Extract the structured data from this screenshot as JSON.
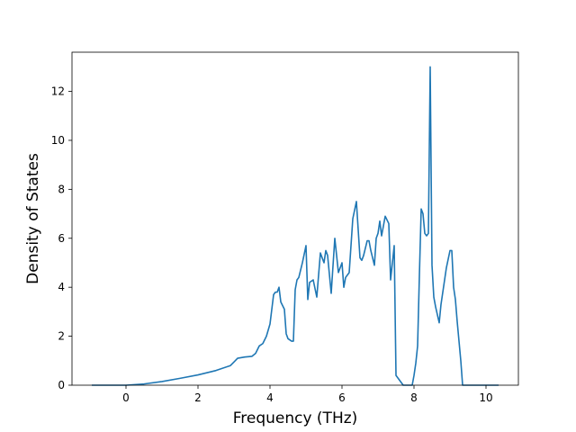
{
  "chart_data": {
    "type": "line",
    "title": "",
    "xlabel": "Frequency (THz)",
    "ylabel": "Density of States",
    "xlim": [
      -1.5,
      10.9
    ],
    "ylim": [
      0,
      13.6
    ],
    "grid": false,
    "line_color": "#1f77b4",
    "x_ticks": [
      0,
      2,
      4,
      6,
      8,
      10
    ],
    "y_ticks": [
      0,
      2,
      4,
      6,
      8,
      10,
      12
    ],
    "series": [
      {
        "x": [
          -0.95,
          -0.5,
          0.0,
          0.5,
          1.0,
          1.5,
          2.0,
          2.5,
          2.9,
          3.0,
          3.1,
          3.3,
          3.5,
          3.6,
          3.7,
          3.8,
          3.9,
          4.0,
          4.1,
          4.15,
          4.2,
          4.25,
          4.3,
          4.4,
          4.45,
          4.5,
          4.6,
          4.65,
          4.7,
          4.75,
          4.8,
          4.9,
          5.0,
          5.05,
          5.1,
          5.2,
          5.3,
          5.4,
          5.5,
          5.55,
          5.6,
          5.7,
          5.8,
          5.9,
          6.0,
          6.05,
          6.1,
          6.2,
          6.3,
          6.4,
          6.5,
          6.55,
          6.6,
          6.7,
          6.75,
          6.8,
          6.9,
          6.95,
          7.0,
          7.05,
          7.1,
          7.2,
          7.3,
          7.35,
          7.4,
          7.45,
          7.5,
          7.7,
          7.9,
          7.95,
          8.0,
          8.05,
          8.1,
          8.15,
          8.2,
          8.25,
          8.3,
          8.35,
          8.4,
          8.45,
          8.5,
          8.55,
          8.6,
          8.7,
          8.75,
          8.8,
          8.9,
          9.0,
          9.05,
          9.1,
          9.15,
          9.2,
          9.3,
          9.35,
          9.4,
          9.5,
          9.8,
          10.35
        ],
        "y": [
          0,
          0,
          0,
          0.05,
          0.15,
          0.28,
          0.42,
          0.6,
          0.8,
          0.95,
          1.1,
          1.15,
          1.18,
          1.3,
          1.6,
          1.7,
          2.0,
          2.5,
          3.7,
          3.8,
          3.8,
          4.0,
          3.4,
          3.1,
          2.1,
          1.9,
          1.8,
          1.8,
          3.9,
          4.3,
          4.4,
          5.0,
          5.7,
          3.5,
          4.2,
          4.3,
          3.6,
          5.4,
          5.0,
          5.5,
          5.3,
          3.75,
          6.0,
          4.6,
          5.0,
          4.0,
          4.4,
          4.6,
          6.8,
          7.5,
          5.2,
          5.1,
          5.3,
          5.9,
          5.9,
          5.5,
          4.9,
          6.0,
          6.2,
          6.7,
          6.1,
          6.9,
          6.6,
          4.3,
          5.0,
          5.7,
          0.4,
          0,
          0,
          0,
          0.4,
          0.9,
          1.6,
          4.5,
          7.2,
          7.0,
          6.2,
          6.1,
          6.2,
          13.0,
          4.9,
          3.6,
          3.2,
          2.55,
          3.3,
          3.8,
          4.8,
          5.5,
          5.5,
          4.0,
          3.5,
          2.6,
          1.0,
          0,
          0,
          0,
          0,
          0
        ]
      }
    ]
  }
}
